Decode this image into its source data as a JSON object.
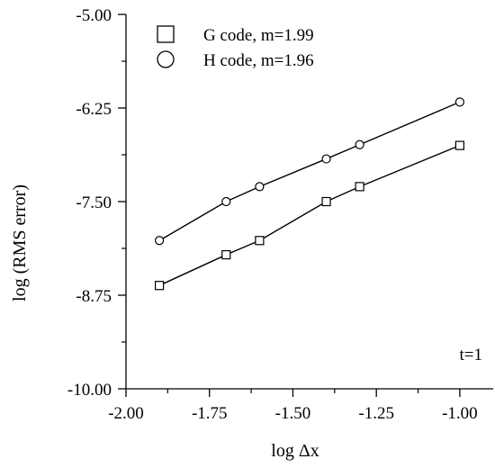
{
  "chart_data": {
    "type": "scatter",
    "xlabel": "log Δx",
    "ylabel": "log (RMS error)",
    "xlim": [
      -2.0,
      -0.9
    ],
    "ylim": [
      -10.0,
      -5.0
    ],
    "x_ticks": [
      -2.0,
      -1.75,
      -1.5,
      -1.25,
      -1.0
    ],
    "x_tick_labels": [
      "-2.00",
      "-1.75",
      "-1.50",
      "-1.25",
      "-1.00"
    ],
    "y_ticks": [
      -5.0,
      -6.25,
      -7.5,
      -8.75,
      -10.0
    ],
    "y_tick_labels": [
      "-5.00",
      "-6.25",
      "-7.50",
      "-8.75",
      "-10.00"
    ],
    "grid": false,
    "legend_position": "top-left",
    "annotation": "t=1",
    "series": [
      {
        "name": "G code, m=1.99",
        "marker": "square",
        "x": [
          -1.9,
          -1.7,
          -1.6,
          -1.4,
          -1.3,
          -1.0
        ],
        "y": [
          -8.62,
          -8.21,
          -8.02,
          -7.5,
          -7.3,
          -6.75
        ]
      },
      {
        "name": "H code, m=1.96",
        "marker": "circle",
        "x": [
          -1.9,
          -1.7,
          -1.6,
          -1.4,
          -1.3,
          -1.0
        ],
        "y": [
          -8.02,
          -7.5,
          -7.3,
          -6.93,
          -6.74,
          -6.17
        ]
      }
    ]
  }
}
